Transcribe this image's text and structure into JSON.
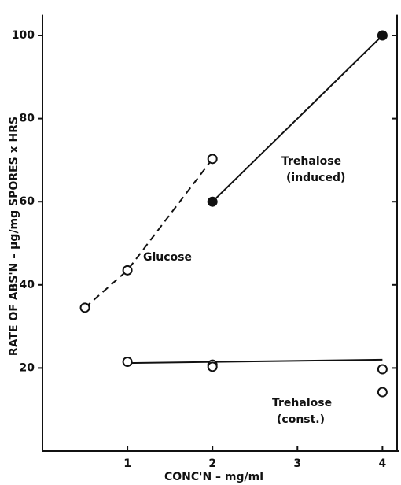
{
  "chart_data": {
    "type": "scatter",
    "xlabel": "CONC'N – mg/ml",
    "ylabel": "RATE OF ABS'N – μg/mg SPORES x HRS",
    "xlim": [
      0,
      4.2
    ],
    "ylim": [
      0,
      105
    ],
    "xticks": [
      1,
      2,
      3,
      4
    ],
    "yticks": [
      20,
      40,
      60,
      80,
      100
    ],
    "series": [
      {
        "name": "Glucose",
        "color": "#111111",
        "line": "dashed",
        "marker": "open",
        "x": [
          0.5,
          1,
          2
        ],
        "values": [
          34.5,
          43.5,
          70.3
        ]
      },
      {
        "name": "Trehalose (induced)",
        "color": "#111111",
        "line": "solid",
        "marker": "filled",
        "x": [
          2,
          4
        ],
        "values": [
          60,
          100
        ]
      },
      {
        "name": "Trehalose (const.)",
        "color": "#111111",
        "line": "none",
        "marker": "open",
        "x": [
          1,
          2,
          2,
          4,
          4
        ],
        "values": [
          21.5,
          20.8,
          20.3,
          19.7,
          14.2
        ],
        "fit": {
          "x": [
            1,
            4
          ],
          "values": [
            21.2,
            22
          ]
        }
      }
    ]
  }
}
